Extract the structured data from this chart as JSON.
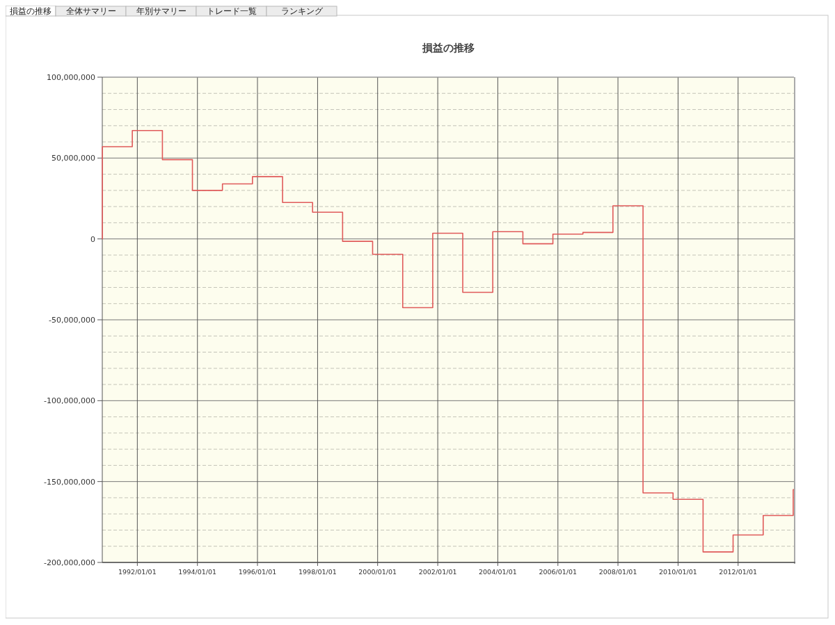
{
  "chart_data": {
    "type": "step",
    "title": "損益の推移",
    "annotations": [
      "損益の推移",
      "全体サマリー",
      "年別サマリー",
      "トレード一覧",
      "ランキング"
    ],
    "x": [
      "1990-11-01",
      "1990-11-02",
      "1991-11-01",
      "1992-11-01",
      "1993-11-01",
      "1994-11-01",
      "1995-11-01",
      "1996-11-01",
      "1997-11-01",
      "1998-11-01",
      "1999-11-01",
      "2000-11-01",
      "2001-11-01",
      "2002-11-01",
      "2003-11-01",
      "2004-11-01",
      "2005-11-01",
      "2006-11-01",
      "2007-11-01",
      "2008-11-01",
      "2009-11-01",
      "2010-11-01",
      "2011-11-01",
      "2012-11-01",
      "2013-11-01",
      "2013-11-10"
    ],
    "series": [
      {
        "color": "#e05a5a",
        "values": [
          0,
          57000000,
          67000000,
          49000000,
          30000000,
          34000000,
          38500000,
          22500000,
          16500000,
          -1500000,
          -9500000,
          -42500000,
          3500000,
          -33000000,
          4500000,
          -3000000,
          3000000,
          4000000,
          20500000,
          -157000000,
          -161000000,
          -193500000,
          -183000000,
          -171000000,
          -155000000,
          -155000000
        ]
      }
    ],
    "xlim": [
      "1990-11-01",
      "2013-11-10"
    ],
    "xticks": [
      {
        "value": "1992-01-01",
        "label": "1992/01/01"
      },
      {
        "value": "1994-01-01",
        "label": "1994/01/01"
      },
      {
        "value": "1996-01-01",
        "label": "1996/01/01"
      },
      {
        "value": "1998-01-01",
        "label": "1998/01/01"
      },
      {
        "value": "2000-01-01",
        "label": "2000/01/01"
      },
      {
        "value": "2002-01-01",
        "label": "2002/01/01"
      },
      {
        "value": "2004-01-01",
        "label": "2004/01/01"
      },
      {
        "value": "2006-01-01",
        "label": "2006/01/01"
      },
      {
        "value": "2008-01-01",
        "label": "2008/01/01"
      },
      {
        "value": "2010-01-01",
        "label": "2010/01/01"
      },
      {
        "value": "2012-01-01",
        "label": "2012/01/01"
      }
    ],
    "ylim": [
      -200000000,
      100000000
    ],
    "yticks": [
      {
        "value": -200000000,
        "label": "-200,000,000"
      },
      {
        "value": -190000000,
        "label": null
      },
      {
        "value": -180000000,
        "label": null
      },
      {
        "value": -170000000,
        "label": null
      },
      {
        "value": -160000000,
        "label": null
      },
      {
        "value": -150000000,
        "label": "-150,000,000"
      },
      {
        "value": -140000000,
        "label": null
      },
      {
        "value": -130000000,
        "label": null
      },
      {
        "value": -120000000,
        "label": null
      },
      {
        "value": -110000000,
        "label": null
      },
      {
        "value": -100000000,
        "label": "-100,000,000"
      },
      {
        "value": -90000000,
        "label": null
      },
      {
        "value": -80000000,
        "label": null
      },
      {
        "value": -70000000,
        "label": null
      },
      {
        "value": -60000000,
        "label": null
      },
      {
        "value": -50000000,
        "label": "-50,000,000"
      },
      {
        "value": -40000000,
        "label": null
      },
      {
        "value": -30000000,
        "label": null
      },
      {
        "value": -20000000,
        "label": null
      },
      {
        "value": -10000000,
        "label": null
      },
      {
        "value": 0,
        "label": "0"
      },
      {
        "value": 10000000,
        "label": null
      },
      {
        "value": 20000000,
        "label": null
      },
      {
        "value": 30000000,
        "label": null
      },
      {
        "value": 40000000,
        "label": null
      },
      {
        "value": 50000000,
        "label": "50,000,000"
      },
      {
        "value": 60000000,
        "label": null
      },
      {
        "value": 70000000,
        "label": null
      },
      {
        "value": 80000000,
        "label": null
      },
      {
        "value": 90000000,
        "label": null
      },
      {
        "value": 100000000,
        "label": "100,000,000"
      }
    ],
    "grid": true,
    "marker": "none",
    "line_style": "solid"
  }
}
